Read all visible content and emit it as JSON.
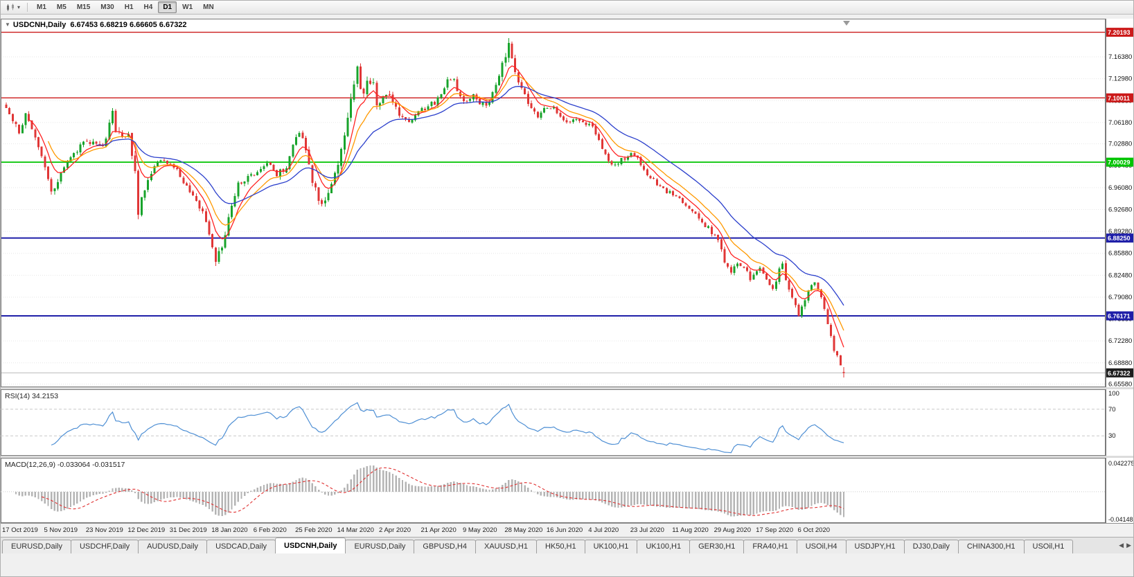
{
  "toolbar": {
    "timeframes": [
      "M1",
      "M5",
      "M15",
      "M30",
      "H1",
      "H4",
      "D1",
      "W1",
      "MN"
    ],
    "active_timeframe": "D1"
  },
  "chart": {
    "collapse_icon": "▼",
    "symbol_period": "USDCNH,Daily",
    "ohlc_text": "6.67453 6.68219 6.66605 6.67322",
    "open": 6.67453,
    "high": 6.68219,
    "low": 6.66605,
    "close": 6.67322,
    "current_price_label": "6.67322",
    "price_axis_labels": [
      "7.16380",
      "7.12980",
      "7.09580",
      "7.06180",
      "7.02880",
      "6.99480",
      "6.96080",
      "6.92680",
      "6.89280",
      "6.85880",
      "6.82480",
      "6.79080",
      "6.75680",
      "6.72280",
      "6.68880",
      "6.65580"
    ],
    "levels": [
      {
        "label": "7.20193",
        "value": 7.20193,
        "color": "#cc1a1a",
        "width": 1.4
      },
      {
        "label": "7.10011",
        "value": 7.10011,
        "color": "#cc1a1a",
        "width": 1.4
      },
      {
        "label": "7.00029",
        "value": 7.00029,
        "color": "#00c400",
        "width": 1.8
      },
      {
        "label": "6.88250",
        "value": 6.8825,
        "color": "#1e1ea8",
        "width": 2
      },
      {
        "label": "6.76171",
        "value": 6.76171,
        "color": "#1e1ea8",
        "width": 2
      }
    ],
    "dates": [
      "17 Oct 2019",
      "5 Nov 2019",
      "23 Nov 2019",
      "12 Dec 2019",
      "31 Dec 2019",
      "18 Jan 2020",
      "6 Feb 2020",
      "25 Feb 2020",
      "14 Mar 2020",
      "2 Apr 2020",
      "21 Apr 2020",
      "9 May 2020",
      "28 May 2020",
      "16 Jun 2020",
      "4 Jul 2020",
      "23 Jul 2020",
      "11 Aug 2020",
      "29 Aug 2020",
      "17 Sep 2020",
      "6 Oct 2020"
    ],
    "colors": {
      "up": "#18a32b",
      "down": "#e03636",
      "ma_fast": "#ff2222",
      "ma_mid": "#ff9900",
      "ma_slow": "#2b3fcc",
      "grid": "#e6e6e6",
      "current_line": "#b8b8b8",
      "current_badge": "#1c1c1c",
      "macd_hist": "#b4b4b4",
      "macd_signal": "#e03030"
    }
  },
  "rsi_panel": {
    "text": "RSI(14) 34.2153",
    "period": 14,
    "value": "34.2153",
    "axis_labels": [
      "100",
      "70",
      "30"
    ],
    "levels": [
      70,
      30
    ],
    "color": "#4e8fd4"
  },
  "macd_panel": {
    "text": "MACD(12,26,9) -0.033064 -0.031517",
    "fast": 12,
    "slow": 26,
    "signal": 9,
    "value": "-0.033064",
    "signal_value": "-0.031517",
    "axis_max_label": "0.042275",
    "axis_min_label": "-0.04148"
  },
  "tabs": {
    "items": [
      {
        "label": "EURUSD,Daily",
        "active": false
      },
      {
        "label": "USDCHF,Daily",
        "active": false
      },
      {
        "label": "AUDUSD,Daily",
        "active": false
      },
      {
        "label": "USDCAD,Daily",
        "active": false
      },
      {
        "label": "USDCNH,Daily",
        "active": true
      },
      {
        "label": "EURUSD,Daily",
        "active": false
      },
      {
        "label": "GBPUSD,H4",
        "active": false
      },
      {
        "label": "XAUUSD,H1",
        "active": false
      },
      {
        "label": "HK50,H1",
        "active": false
      },
      {
        "label": "UK100,H1",
        "active": false
      },
      {
        "label": "UK100,H1",
        "active": false
      },
      {
        "label": "GER30,H1",
        "active": false
      },
      {
        "label": "FRA40,H1",
        "active": false
      },
      {
        "label": "USOil,H4",
        "active": false
      },
      {
        "label": "USDJPY,H1",
        "active": false
      },
      {
        "label": "DJ30,Daily",
        "active": false
      },
      {
        "label": "CHINA300,H1",
        "active": false
      },
      {
        "label": "USOil,H1",
        "active": false
      }
    ],
    "scroll_left": "◀",
    "scroll_right": "▶"
  },
  "chart_data": {
    "type": "candlestick",
    "title": "USDCNH,Daily",
    "x_axis": {
      "tick_labels": [
        "17 Oct 2019",
        "5 Nov 2019",
        "23 Nov 2019",
        "12 Dec 2019",
        "31 Dec 2019",
        "18 Jan 2020",
        "6 Feb 2020",
        "25 Feb 2020",
        "14 Mar 2020",
        "2 Apr 2020",
        "21 Apr 2020",
        "9 May 2020",
        "28 May 2020",
        "16 Jun 2020",
        "4 Jul 2020",
        "23 Jul 2020",
        "11 Aug 2020",
        "29 Aug 2020",
        "17 Sep 2020",
        "6 Oct 2020"
      ],
      "candles_per_tick": 13
    },
    "y_axis": {
      "visible_range": [
        6.651,
        7.223
      ],
      "tick_step": 0.034
    },
    "candle_count": 261,
    "last_candle": {
      "open": 6.67453,
      "high": 6.68219,
      "low": 6.66605,
      "close": 6.67322
    },
    "close_path_anchors": [
      [
        0,
        7.09
      ],
      [
        2,
        7.062
      ],
      [
        4,
        7.048
      ],
      [
        6,
        7.076
      ],
      [
        8,
        7.056
      ],
      [
        10,
        7.022
      ],
      [
        12,
        6.992
      ],
      [
        14,
        6.955
      ],
      [
        16,
        6.974
      ],
      [
        18,
        6.992
      ],
      [
        21,
        7.016
      ],
      [
        24,
        7.028
      ],
      [
        27,
        7.034
      ],
      [
        30,
        7.026
      ],
      [
        32,
        7.056
      ],
      [
        33,
        7.082
      ],
      [
        34,
        7.048
      ],
      [
        36,
        7.035
      ],
      [
        38,
        7.043
      ],
      [
        40,
        6.985
      ],
      [
        41,
        6.922
      ],
      [
        43,
        6.96
      ],
      [
        45,
        6.986
      ],
      [
        48,
        7.001
      ],
      [
        52,
        6.995
      ],
      [
        55,
        6.97
      ],
      [
        58,
        6.945
      ],
      [
        61,
        6.924
      ],
      [
        63,
        6.882
      ],
      [
        65,
        6.85
      ],
      [
        67,
        6.863
      ],
      [
        69,
        6.914
      ],
      [
        72,
        6.965
      ],
      [
        75,
        6.977
      ],
      [
        78,
        6.985
      ],
      [
        81,
        6.999
      ],
      [
        84,
        6.981
      ],
      [
        87,
        6.993
      ],
      [
        89,
        7.031
      ],
      [
        91,
        7.051
      ],
      [
        93,
        7.02
      ],
      [
        95,
        6.97
      ],
      [
        97,
        6.941
      ],
      [
        98,
        6.931
      ],
      [
        100,
        6.955
      ],
      [
        102,
        6.981
      ],
      [
        104,
        7.023
      ],
      [
        106,
        7.064
      ],
      [
        108,
        7.121
      ],
      [
        109,
        7.147
      ],
      [
        110,
        7.115
      ],
      [
        111,
        7.105
      ],
      [
        112,
        7.128
      ],
      [
        114,
        7.118
      ],
      [
        115,
        7.09
      ],
      [
        117,
        7.097
      ],
      [
        119,
        7.108
      ],
      [
        121,
        7.085
      ],
      [
        123,
        7.067
      ],
      [
        125,
        7.06
      ],
      [
        127,
        7.074
      ],
      [
        130,
        7.085
      ],
      [
        133,
        7.093
      ],
      [
        135,
        7.104
      ],
      [
        137,
        7.131
      ],
      [
        139,
        7.126
      ],
      [
        141,
        7.103
      ],
      [
        143,
        7.095
      ],
      [
        145,
        7.103
      ],
      [
        147,
        7.093
      ],
      [
        149,
        7.089
      ],
      [
        151,
        7.107
      ],
      [
        153,
        7.128
      ],
      [
        155,
        7.17
      ],
      [
        156,
        7.183
      ],
      [
        157,
        7.162
      ],
      [
        159,
        7.129
      ],
      [
        161,
        7.101
      ],
      [
        163,
        7.081
      ],
      [
        165,
        7.071
      ],
      [
        167,
        7.081
      ],
      [
        169,
        7.087
      ],
      [
        171,
        7.077
      ],
      [
        173,
        7.069
      ],
      [
        175,
        7.061
      ],
      [
        177,
        7.069
      ],
      [
        179,
        7.063
      ],
      [
        182,
        7.057
      ],
      [
        184,
        7.035
      ],
      [
        186,
        7.011
      ],
      [
        188,
        6.995
      ],
      [
        190,
        7.001
      ],
      [
        192,
        7.007
      ],
      [
        195,
        7.013
      ],
      [
        197,
        6.995
      ],
      [
        199,
        6.983
      ],
      [
        201,
        6.971
      ],
      [
        203,
        6.963
      ],
      [
        205,
        6.955
      ],
      [
        208,
        6.949
      ],
      [
        210,
        6.939
      ],
      [
        212,
        6.929
      ],
      [
        214,
        6.919
      ],
      [
        216,
        6.907
      ],
      [
        218,
        6.897
      ],
      [
        221,
        6.879
      ],
      [
        223,
        6.847
      ],
      [
        225,
        6.831
      ],
      [
        227,
        6.841
      ],
      [
        229,
        6.835
      ],
      [
        231,
        6.821
      ],
      [
        233,
        6.831
      ],
      [
        234,
        6.839
      ],
      [
        236,
        6.817
      ],
      [
        238,
        6.801
      ],
      [
        240,
        6.835
      ],
      [
        241,
        6.839
      ],
      [
        243,
        6.805
      ],
      [
        245,
        6.777
      ],
      [
        246,
        6.765
      ],
      [
        248,
        6.787
      ],
      [
        250,
        6.809
      ],
      [
        251,
        6.815
      ],
      [
        253,
        6.795
      ],
      [
        254,
        6.771
      ],
      [
        255,
        6.751
      ],
      [
        256,
        6.727
      ],
      [
        257,
        6.709
      ],
      [
        258,
        6.697
      ],
      [
        259,
        6.681
      ],
      [
        260,
        6.6732
      ]
    ],
    "volatility_anchors": [
      [
        0,
        1.3
      ],
      [
        10,
        1.1
      ],
      [
        14,
        1.4
      ],
      [
        20,
        1.0
      ],
      [
        32,
        1.4
      ],
      [
        40,
        1.9
      ],
      [
        44,
        1.2
      ],
      [
        50,
        0.9
      ],
      [
        58,
        1.0
      ],
      [
        63,
        1.5
      ],
      [
        66,
        1.6
      ],
      [
        70,
        1.3
      ],
      [
        75,
        1.0
      ],
      [
        85,
        1.0
      ],
      [
        90,
        1.3
      ],
      [
        96,
        1.5
      ],
      [
        100,
        1.3
      ],
      [
        104,
        1.7
      ],
      [
        108,
        2.3
      ],
      [
        112,
        2.0
      ],
      [
        116,
        1.6
      ],
      [
        120,
        1.3
      ],
      [
        126,
        1.0
      ],
      [
        132,
        1.0
      ],
      [
        137,
        1.2
      ],
      [
        142,
        1.0
      ],
      [
        148,
        1.0
      ],
      [
        152,
        1.3
      ],
      [
        155,
        2.0
      ],
      [
        157,
        1.6
      ],
      [
        160,
        1.3
      ],
      [
        165,
        1.0
      ],
      [
        170,
        0.9
      ],
      [
        176,
        0.8
      ],
      [
        182,
        0.9
      ],
      [
        188,
        1.0
      ],
      [
        195,
        0.8
      ],
      [
        202,
        0.8
      ],
      [
        208,
        0.8
      ],
      [
        214,
        0.8
      ],
      [
        220,
        1.0
      ],
      [
        224,
        1.2
      ],
      [
        230,
        0.9
      ],
      [
        236,
        0.9
      ],
      [
        240,
        1.0
      ],
      [
        244,
        1.3
      ],
      [
        247,
        1.2
      ],
      [
        251,
        1.0
      ],
      [
        254,
        1.1
      ],
      [
        257,
        1.0
      ],
      [
        260,
        0.9
      ]
    ],
    "overlays": {
      "ma_periods": [
        7,
        13,
        28
      ],
      "horizontal_levels": [
        7.20193,
        7.10011,
        7.00029,
        6.8825,
        6.76171
      ]
    },
    "sub_indicators": [
      {
        "name": "RSI",
        "period": 14,
        "last_value": 34.2153,
        "levels": [
          70,
          30
        ]
      },
      {
        "name": "MACD",
        "params": [
          12,
          26,
          9
        ],
        "last_main": -0.033064,
        "last_signal": -0.031517,
        "axis": [
          -0.04148,
          0.042275
        ]
      }
    ]
  }
}
